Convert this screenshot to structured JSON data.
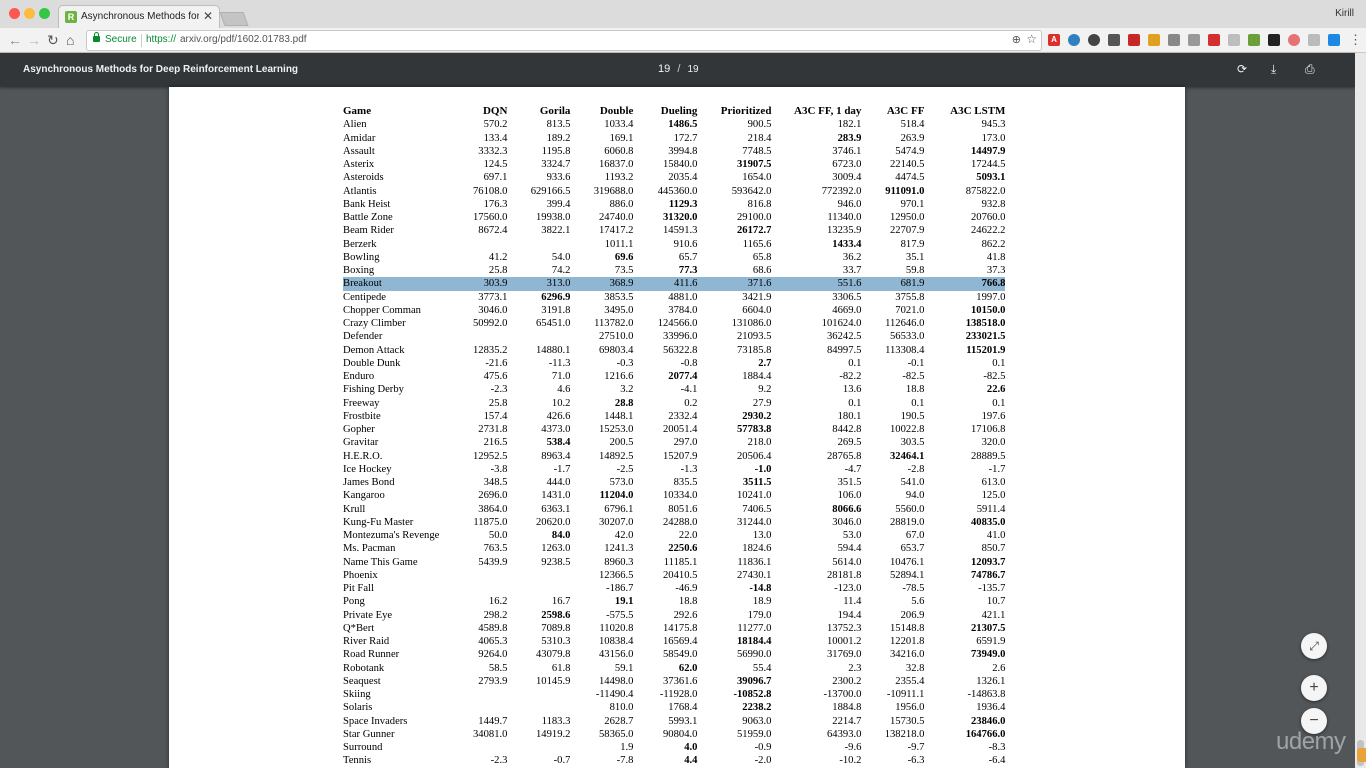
{
  "browser": {
    "tab_title": "Asynchronous Methods for De",
    "tab_favicon": "R",
    "user": "Kirill",
    "secure_label": "Secure",
    "url_scheme": "https://",
    "url_rest": "arxiv.org/pdf/1602.01783.pdf",
    "icons": [
      "back-arrow-icon",
      "forward-arrow-icon",
      "reload-icon",
      "home-icon",
      "lock-icon",
      "zoom-icon",
      "star-icon",
      "menu-dots-icon"
    ]
  },
  "pdf_viewer": {
    "title": "Asynchronous Methods for Deep Reinforcement Learning",
    "page_current": "19",
    "page_separator": "/",
    "page_total": "19",
    "icons": [
      "rotate-icon",
      "download-icon",
      "print-icon",
      "fit-page-icon",
      "zoom-in-icon",
      "zoom-out-icon"
    ]
  },
  "watermark": "udemy",
  "table": {
    "headers": [
      "Game",
      "DQN",
      "Gorila",
      "Double",
      "Dueling",
      "Prioritized",
      "A3C FF, 1 day",
      "A3C FF",
      "A3C LSTM"
    ],
    "highlight_row": "Breakout",
    "rows": [
      [
        "Alien",
        "570.2",
        "813.5",
        "1033.4",
        "*1486.5",
        "900.5",
        "182.1",
        "518.4",
        "945.3"
      ],
      [
        "Amidar",
        "133.4",
        "189.2",
        "169.1",
        "172.7",
        "218.4",
        "*283.9",
        "263.9",
        "173.0"
      ],
      [
        "Assault",
        "3332.3",
        "1195.8",
        "6060.8",
        "3994.8",
        "7748.5",
        "3746.1",
        "5474.9",
        "*14497.9"
      ],
      [
        "Asterix",
        "124.5",
        "3324.7",
        "16837.0",
        "15840.0",
        "*31907.5",
        "6723.0",
        "22140.5",
        "17244.5"
      ],
      [
        "Asteroids",
        "697.1",
        "933.6",
        "1193.2",
        "2035.4",
        "1654.0",
        "3009.4",
        "4474.5",
        "*5093.1"
      ],
      [
        "Atlantis",
        "76108.0",
        "629166.5",
        "319688.0",
        "445360.0",
        "593642.0",
        "772392.0",
        "*911091.0",
        "875822.0"
      ],
      [
        "Bank Heist",
        "176.3",
        "399.4",
        "886.0",
        "*1129.3",
        "816.8",
        "946.0",
        "970.1",
        "932.8"
      ],
      [
        "Battle Zone",
        "17560.0",
        "19938.0",
        "24740.0",
        "*31320.0",
        "29100.0",
        "11340.0",
        "12950.0",
        "20760.0"
      ],
      [
        "Beam Rider",
        "8672.4",
        "3822.1",
        "17417.2",
        "14591.3",
        "*26172.7",
        "13235.9",
        "22707.9",
        "24622.2"
      ],
      [
        "Berzerk",
        "",
        "",
        "1011.1",
        "910.6",
        "1165.6",
        "*1433.4",
        "817.9",
        "862.2"
      ],
      [
        "Bowling",
        "41.2",
        "54.0",
        "*69.6",
        "65.7",
        "65.8",
        "36.2",
        "35.1",
        "41.8"
      ],
      [
        "Boxing",
        "25.8",
        "74.2",
        "73.5",
        "*77.3",
        "68.6",
        "33.7",
        "59.8",
        "37.3"
      ],
      [
        "Breakout",
        "303.9",
        "313.0",
        "368.9",
        "411.6",
        "371.6",
        "551.6",
        "681.9",
        "*766.8"
      ],
      [
        "Centipede",
        "3773.1",
        "*6296.9",
        "3853.5",
        "4881.0",
        "3421.9",
        "3306.5",
        "3755.8",
        "1997.0"
      ],
      [
        "Chopper Comman",
        "3046.0",
        "3191.8",
        "3495.0",
        "3784.0",
        "6604.0",
        "4669.0",
        "7021.0",
        "*10150.0"
      ],
      [
        "Crazy Climber",
        "50992.0",
        "65451.0",
        "113782.0",
        "124566.0",
        "131086.0",
        "101624.0",
        "112646.0",
        "*138518.0"
      ],
      [
        "Defender",
        "",
        "",
        "27510.0",
        "33996.0",
        "21093.5",
        "36242.5",
        "56533.0",
        "*233021.5"
      ],
      [
        "Demon Attack",
        "12835.2",
        "14880.1",
        "69803.4",
        "56322.8",
        "73185.8",
        "84997.5",
        "113308.4",
        "*115201.9"
      ],
      [
        "Double Dunk",
        "-21.6",
        "-11.3",
        "-0.3",
        "-0.8",
        "*2.7",
        "0.1",
        "-0.1",
        "0.1"
      ],
      [
        "Enduro",
        "475.6",
        "71.0",
        "1216.6",
        "*2077.4",
        "1884.4",
        "-82.2",
        "-82.5",
        "-82.5"
      ],
      [
        "Fishing Derby",
        "-2.3",
        "4.6",
        "3.2",
        "-4.1",
        "9.2",
        "13.6",
        "18.8",
        "*22.6"
      ],
      [
        "Freeway",
        "25.8",
        "10.2",
        "*28.8",
        "0.2",
        "27.9",
        "0.1",
        "0.1",
        "0.1"
      ],
      [
        "Frostbite",
        "157.4",
        "426.6",
        "1448.1",
        "2332.4",
        "*2930.2",
        "180.1",
        "190.5",
        "197.6"
      ],
      [
        "Gopher",
        "2731.8",
        "4373.0",
        "15253.0",
        "20051.4",
        "*57783.8",
        "8442.8",
        "10022.8",
        "17106.8"
      ],
      [
        "Gravitar",
        "216.5",
        "*538.4",
        "200.5",
        "297.0",
        "218.0",
        "269.5",
        "303.5",
        "320.0"
      ],
      [
        "H.E.R.O.",
        "12952.5",
        "8963.4",
        "14892.5",
        "15207.9",
        "20506.4",
        "28765.8",
        "*32464.1",
        "28889.5"
      ],
      [
        "Ice Hockey",
        "-3.8",
        "-1.7",
        "-2.5",
        "-1.3",
        "*-1.0",
        "-4.7",
        "-2.8",
        "-1.7"
      ],
      [
        "James Bond",
        "348.5",
        "444.0",
        "573.0",
        "835.5",
        "*3511.5",
        "351.5",
        "541.0",
        "613.0"
      ],
      [
        "Kangaroo",
        "2696.0",
        "1431.0",
        "*11204.0",
        "10334.0",
        "10241.0",
        "106.0",
        "94.0",
        "125.0"
      ],
      [
        "Krull",
        "3864.0",
        "6363.1",
        "6796.1",
        "8051.6",
        "7406.5",
        "*8066.6",
        "5560.0",
        "5911.4"
      ],
      [
        "Kung-Fu Master",
        "11875.0",
        "20620.0",
        "30207.0",
        "24288.0",
        "31244.0",
        "3046.0",
        "28819.0",
        "*40835.0"
      ],
      [
        "Montezuma's Revenge",
        "50.0",
        "*84.0",
        "42.0",
        "22.0",
        "13.0",
        "53.0",
        "67.0",
        "41.0"
      ],
      [
        "Ms. Pacman",
        "763.5",
        "1263.0",
        "1241.3",
        "*2250.6",
        "1824.6",
        "594.4",
        "653.7",
        "850.7"
      ],
      [
        "Name This Game",
        "5439.9",
        "9238.5",
        "8960.3",
        "11185.1",
        "11836.1",
        "5614.0",
        "10476.1",
        "*12093.7"
      ],
      [
        "Phoenix",
        "",
        "",
        "12366.5",
        "20410.5",
        "27430.1",
        "28181.8",
        "52894.1",
        "*74786.7"
      ],
      [
        "Pit Fall",
        "",
        "",
        "-186.7",
        "-46.9",
        "*-14.8",
        "-123.0",
        "-78.5",
        "-135.7"
      ],
      [
        "Pong",
        "16.2",
        "16.7",
        "*19.1",
        "18.8",
        "18.9",
        "11.4",
        "5.6",
        "10.7"
      ],
      [
        "Private Eye",
        "298.2",
        "*2598.6",
        "-575.5",
        "292.6",
        "179.0",
        "194.4",
        "206.9",
        "421.1"
      ],
      [
        "Q*Bert",
        "4589.8",
        "7089.8",
        "11020.8",
        "14175.8",
        "11277.0",
        "13752.3",
        "15148.8",
        "*21307.5"
      ],
      [
        "River Raid",
        "4065.3",
        "5310.3",
        "10838.4",
        "16569.4",
        "*18184.4",
        "10001.2",
        "12201.8",
        "6591.9"
      ],
      [
        "Road Runner",
        "9264.0",
        "43079.8",
        "43156.0",
        "58549.0",
        "56990.0",
        "31769.0",
        "34216.0",
        "*73949.0"
      ],
      [
        "Robotank",
        "58.5",
        "61.8",
        "59.1",
        "*62.0",
        "55.4",
        "2.3",
        "32.8",
        "2.6"
      ],
      [
        "Seaquest",
        "2793.9",
        "10145.9",
        "14498.0",
        "37361.6",
        "*39096.7",
        "2300.2",
        "2355.4",
        "1326.1"
      ],
      [
        "Skiing",
        "",
        "",
        "-11490.4",
        "-11928.0",
        "*-10852.8",
        "-13700.0",
        "-10911.1",
        "-14863.8"
      ],
      [
        "Solaris",
        "",
        "",
        "810.0",
        "1768.4",
        "*2238.2",
        "1884.8",
        "1956.0",
        "1936.4"
      ],
      [
        "Space Invaders",
        "1449.7",
        "1183.3",
        "2628.7",
        "5993.1",
        "9063.0",
        "2214.7",
        "15730.5",
        "*23846.0"
      ],
      [
        "Star Gunner",
        "34081.0",
        "14919.2",
        "58365.0",
        "90804.0",
        "51959.0",
        "64393.0",
        "138218.0",
        "*164766.0"
      ],
      [
        "Surround",
        "",
        "",
        "1.9",
        "*4.0",
        "-0.9",
        "-9.6",
        "-9.7",
        "-8.3"
      ],
      [
        "Tennis",
        "-2.3",
        "-0.7",
        "-7.8",
        "*4.4",
        "-2.0",
        "-10.2",
        "-6.3",
        "-6.4"
      ]
    ]
  }
}
